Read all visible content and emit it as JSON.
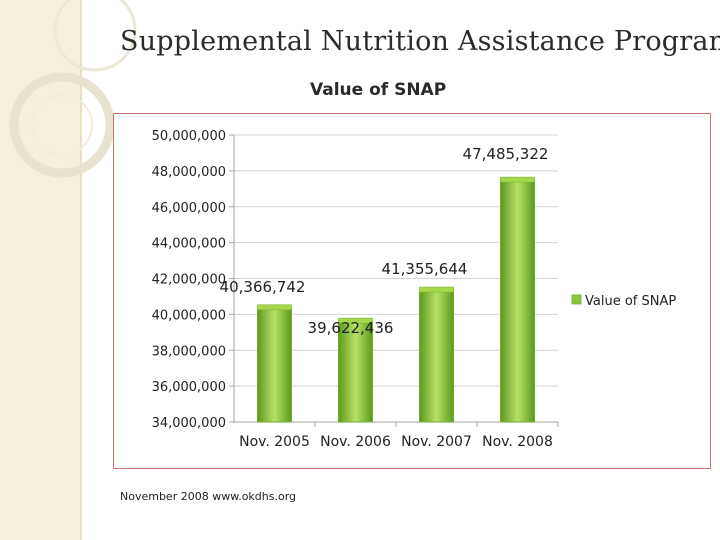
{
  "slide": {
    "title": "Supplemental Nutrition Assistance Program",
    "footer": "November 2008 www.okdhs.org"
  },
  "chart_data": {
    "type": "bar",
    "title": "Value of SNAP",
    "categories": [
      "Nov. 2005",
      "Nov. 2006",
      "Nov. 2007",
      "Nov. 2008"
    ],
    "series": [
      {
        "name": "Value of SNAP",
        "values": [
          40366742,
          39622436,
          41355644,
          47485322
        ]
      }
    ],
    "data_labels": [
      "40,366,742",
      "39,622,436",
      "41,355,644",
      "47,485,322"
    ],
    "ylim": [
      34000000,
      50000000
    ],
    "yticks": [
      34000000,
      36000000,
      38000000,
      40000000,
      42000000,
      44000000,
      46000000,
      48000000,
      50000000
    ],
    "ytick_labels": [
      "34,000,000",
      "36,000,000",
      "38,000,000",
      "40,000,000",
      "42,000,000",
      "44,000,000",
      "46,000,000",
      "48,000,000",
      "50,000,000"
    ],
    "xlabel": "",
    "ylabel": "",
    "grid": true,
    "legend_position": "right",
    "colors": {
      "bar_fill": "#8cc63f",
      "bar_light": "#b9e06a",
      "bar_dark": "#5a9a1c",
      "grid": "#d4d4d4",
      "axis": "#a6a6a6",
      "legend_marker": "#8cc63f"
    }
  }
}
